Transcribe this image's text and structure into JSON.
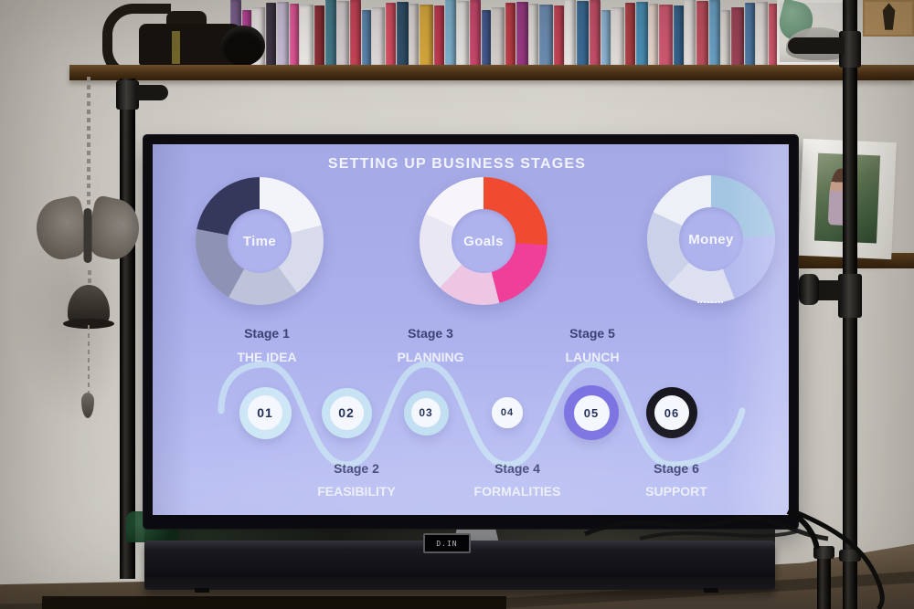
{
  "slide": {
    "title": "SETTING UP BUSINESS STAGES",
    "background_top": "#a4a9e5",
    "background_bottom": "#bac0f3",
    "wave_color": "#c7e0f2",
    "title_color": "#f3f4fb"
  },
  "chart_data": [
    {
      "type": "pie",
      "donut": true,
      "title": "Time",
      "legend_position": "center",
      "segments": [
        {
          "value": 21,
          "color": "#f3f4fa"
        },
        {
          "value": 19,
          "color": "#d8dbeb"
        },
        {
          "value": 18,
          "color": "#bfc3d9"
        },
        {
          "value": 20,
          "color": "#8e93b6"
        },
        {
          "value": 22,
          "color": "#35375b"
        }
      ]
    },
    {
      "type": "pie",
      "donut": true,
      "title": "Goals",
      "legend_position": "center",
      "segments": [
        {
          "value": 26,
          "color": "#f04a31"
        },
        {
          "value": 20,
          "color": "#ef3f99"
        },
        {
          "value": 16,
          "color": "#edc6e3"
        },
        {
          "value": 20,
          "color": "#e9e7f3"
        },
        {
          "value": 18,
          "color": "#f7f5fa"
        }
      ]
    },
    {
      "type": "pie",
      "donut": true,
      "title": "Money",
      "legend_position": "center",
      "segments": [
        {
          "value": 24,
          "color": "#a3c5e2"
        },
        {
          "value": 20,
          "color": "#b2b9ee"
        },
        {
          "value": 18,
          "color": "#dce0f0"
        },
        {
          "value": 20,
          "color": "#cbd1e8"
        },
        {
          "value": 18,
          "color": "#eef0f8"
        }
      ]
    }
  ],
  "timeline": {
    "number_color": "#1e2b52",
    "inner_color": "#f4f7fd",
    "stage_label_color": "#3d4274",
    "stage_name_color": "#edeffa",
    "stages": [
      {
        "num": "01",
        "label": "Stage 1",
        "name": "THE IDEA",
        "ring_color": "#cde6f5"
      },
      {
        "num": "02",
        "label": "Stage 2",
        "name": "FEASIBILITY",
        "ring_color": "#c6e2f3"
      },
      {
        "num": "03",
        "label": "Stage 3",
        "name": "PLANNING",
        "ring_color": "#c0def2"
      },
      {
        "num": "04",
        "label": "Stage 4",
        "name": "FORMALITIES",
        "ring_color": "#f4f7fd"
      },
      {
        "num": "05",
        "label": "Stage 5",
        "name": "LAUNCH",
        "ring_color": "#7a70e1"
      },
      {
        "num": "06",
        "label": "Stage 6",
        "name": "SUPPORT",
        "ring_color": "#16141d"
      }
    ]
  },
  "soundbar": {
    "display_text": "D.IN"
  },
  "shelf": {
    "dvd_spines": [
      "#7a5f8e",
      "#b9439a",
      "#e8e4e2",
      "#3f3747",
      "#c8bfd8",
      "#e5589a",
      "#f0edea",
      "#8c2f35",
      "#447a8c",
      "#d5cfd2",
      "#ca4458",
      "#5b87b0",
      "#e3dede",
      "#d94f63",
      "#30506b",
      "#ddd8d4",
      "#d9a93c",
      "#c23a52",
      "#7fb3d1",
      "#e8e6e3",
      "#cc486e",
      "#455a92",
      "#d8d3cf",
      "#c03e48",
      "#9c3a86",
      "#e4e0dc",
      "#6d8fb5",
      "#c74458",
      "#efecea",
      "#3b6d99",
      "#c8506a",
      "#8fb8d8",
      "#e6e2df",
      "#b04048",
      "#4a90b8",
      "#ead9d0",
      "#d35a74",
      "#35648e",
      "#e8e4e0",
      "#c14f5f",
      "#6ba3c8",
      "#ddd8d3",
      "#9c4458",
      "#4f7ba6",
      "#e3dedb",
      "#d0576b",
      "#86add0",
      "#efe9e4"
    ]
  }
}
